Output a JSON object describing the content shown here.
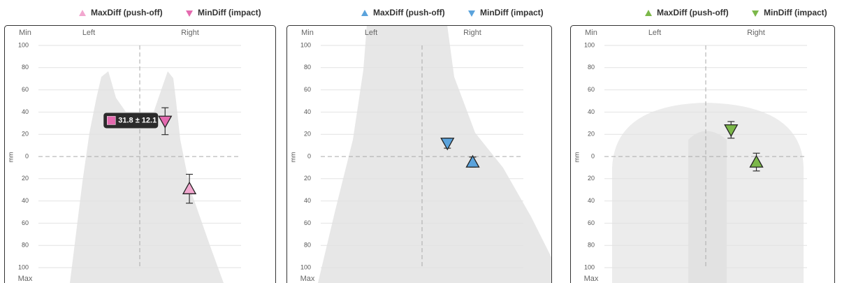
{
  "chart_data": [
    {
      "type": "scatter",
      "y_label": "mm",
      "top_label": "Min",
      "bottom_label": "Max",
      "x_side_labels": [
        "Left",
        "Right"
      ],
      "xlim": [
        -100,
        100
      ],
      "ylim": [
        -100,
        100
      ],
      "yticks": [
        100,
        80,
        60,
        40,
        20,
        0,
        {
          "value": -20,
          "label": "20"
        },
        {
          "value": -40,
          "label": "40"
        },
        {
          "value": -60,
          "label": "60"
        },
        {
          "value": -80,
          "label": "80"
        },
        {
          "value": -100,
          "label": "100"
        }
      ],
      "series": [
        {
          "name": "MaxDiff (push-off)",
          "color": "#f2a7cf",
          "marker": "triangle-up",
          "x": [
            49
          ],
          "values": [
            -29
          ],
          "errors": [
            13
          ]
        },
        {
          "name": "MinDiff (impact)",
          "color": "#e46aaf",
          "marker": "triangle-down",
          "x": [
            25
          ],
          "values": [
            31.8
          ],
          "errors": [
            12.1
          ],
          "value_labels": [
            "31.8 ± 12.1"
          ]
        }
      ]
    },
    {
      "type": "scatter",
      "y_label": "mm",
      "top_label": "Min",
      "bottom_label": "Max",
      "x_side_labels": [
        "Left",
        "Right"
      ],
      "xlim": [
        -100,
        100
      ],
      "ylim": [
        -100,
        100
      ],
      "yticks": [
        100,
        80,
        60,
        40,
        20,
        0,
        {
          "value": -20,
          "label": "20"
        },
        {
          "value": -40,
          "label": "40"
        },
        {
          "value": -60,
          "label": "60"
        },
        {
          "value": -80,
          "label": "80"
        },
        {
          "value": -100,
          "label": "100"
        }
      ],
      "series": [
        {
          "name": "MaxDiff (push-off)",
          "color": "#5ba3dc",
          "marker": "triangle-up",
          "x": [
            50
          ],
          "values": [
            -5
          ],
          "errors": [
            4.5
          ]
        },
        {
          "name": "MinDiff (impact)",
          "color": "#5ba3dc",
          "marker": "triangle-down",
          "x": [
            25
          ],
          "values": [
            12
          ],
          "errors": [
            4.5
          ]
        }
      ]
    },
    {
      "type": "scatter",
      "y_label": "mm",
      "top_label": "Min",
      "bottom_label": "Max",
      "x_side_labels": [
        "Left",
        "Right"
      ],
      "xlim": [
        -100,
        100
      ],
      "ylim": [
        -100,
        100
      ],
      "yticks": [
        100,
        80,
        60,
        40,
        20,
        0,
        {
          "value": -20,
          "label": "20"
        },
        {
          "value": -40,
          "label": "40"
        },
        {
          "value": -60,
          "label": "60"
        },
        {
          "value": -80,
          "label": "80"
        },
        {
          "value": -100,
          "label": "100"
        }
      ],
      "series": [
        {
          "name": "MaxDiff (push-off)",
          "color": "#7cb84a",
          "marker": "triangle-up",
          "x": [
            50
          ],
          "values": [
            -5
          ],
          "errors": [
            8
          ]
        },
        {
          "name": "MinDiff (impact)",
          "color": "#7cb84a",
          "marker": "triangle-down",
          "x": [
            25
          ],
          "values": [
            24
          ],
          "errors": [
            7.5
          ]
        }
      ]
    }
  ]
}
